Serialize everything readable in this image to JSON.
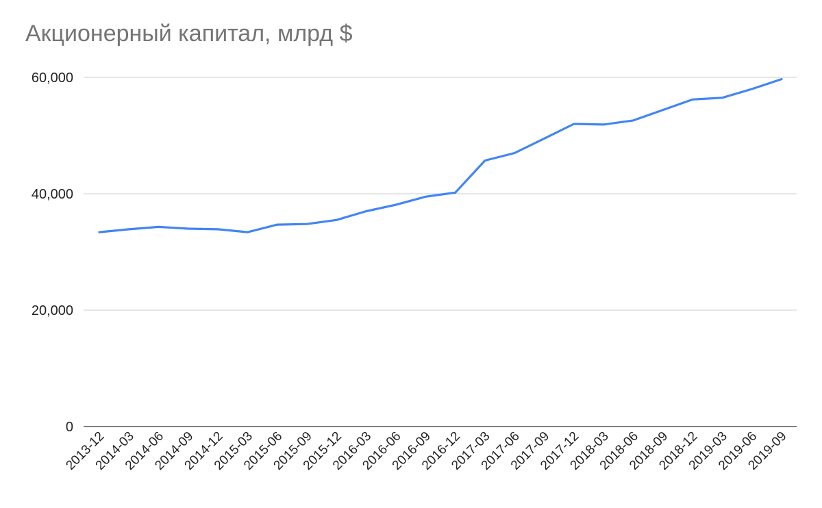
{
  "chart_data": {
    "type": "line",
    "title": "Акционерный капитал, млрд $",
    "xlabel": "",
    "ylabel": "",
    "ylim": [
      0,
      60000
    ],
    "yticks": [
      0,
      20000,
      40000,
      60000
    ],
    "ytick_labels": [
      "0",
      "20,000",
      "40,000",
      "60,000"
    ],
    "grid": true,
    "legend": "none",
    "categories": [
      "2013-12",
      "2014-03",
      "2014-06",
      "2014-09",
      "2014-12",
      "2015-03",
      "2015-06",
      "2015-09",
      "2015-12",
      "2016-03",
      "2016-06",
      "2016-09",
      "2016-12",
      "2017-03",
      "2017-06",
      "2017-09",
      "2017-12",
      "2018-03",
      "2018-06",
      "2018-09",
      "2018-12",
      "2019-03",
      "2019-06",
      "2019-09"
    ],
    "series": [
      {
        "color": "#4285f4",
        "values": [
          33400,
          33900,
          34300,
          34000,
          33900,
          33400,
          34700,
          34800,
          35500,
          37000,
          38100,
          39500,
          40200,
          45700,
          47000,
          49500,
          52000,
          51900,
          52600,
          54400,
          56200,
          56500,
          58000,
          59700
        ]
      }
    ]
  }
}
